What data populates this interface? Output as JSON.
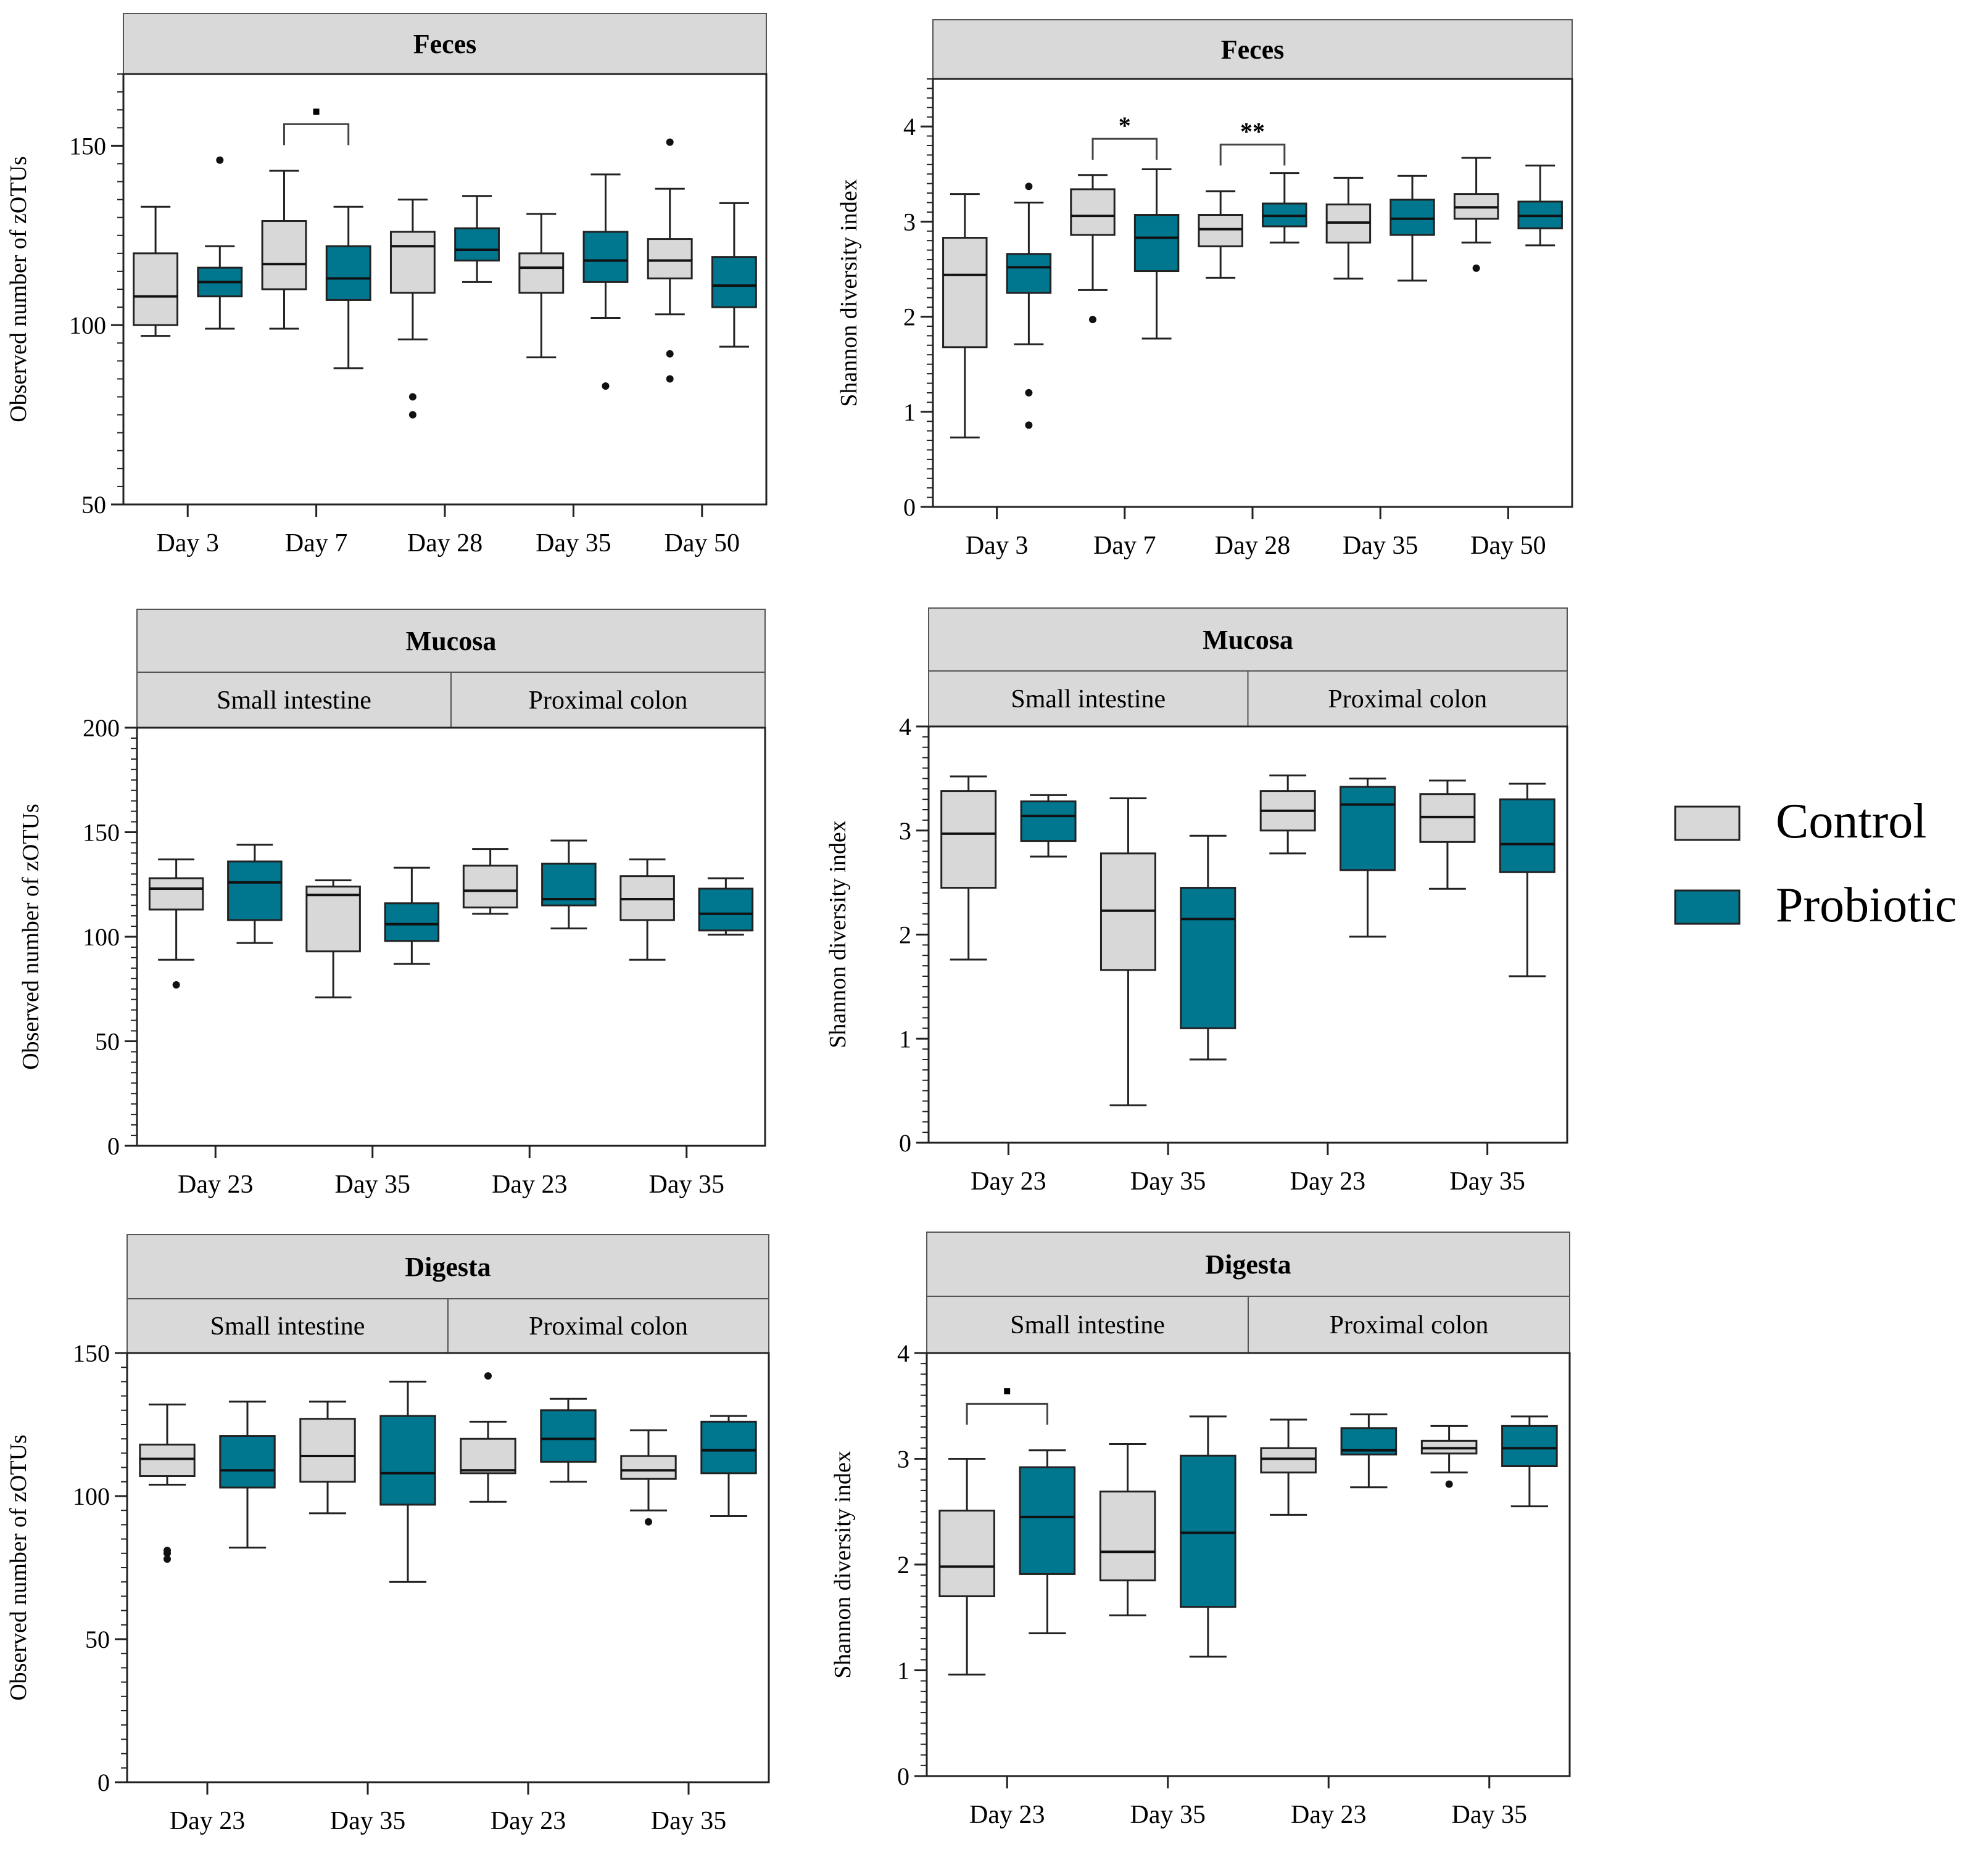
{
  "colors": {
    "control": "#d8d8d8",
    "probiotic": "#00768f",
    "header": "#d9d9d9",
    "ink": "#000000"
  },
  "legend": [
    {
      "key": "control",
      "label": "Control"
    },
    {
      "key": "probiotic",
      "label": "Probiotic"
    }
  ],
  "chart_data": [
    {
      "id": "feces-zotus",
      "type": "box",
      "title": "Feces",
      "subtitles": [],
      "ylabel": "Observed number of zOTUs",
      "ylim": [
        50,
        170
      ],
      "yticks": [
        50,
        100,
        150
      ],
      "categories": [
        "Day 3",
        "Day 7",
        "Day 28",
        "Day 35",
        "Day 50"
      ],
      "series": [
        {
          "name": "Control",
          "boxes": [
            {
              "min": 97,
              "q1": 100,
              "median": 108,
              "q3": 120,
              "max": 133,
              "outliers": []
            },
            {
              "min": 99,
              "q1": 110,
              "median": 117,
              "q3": 129,
              "max": 143,
              "outliers": []
            },
            {
              "min": 96,
              "q1": 109,
              "median": 122,
              "q3": 126,
              "max": 135,
              "outliers": [
                80,
                75
              ]
            },
            {
              "min": 91,
              "q1": 109,
              "median": 116,
              "q3": 120,
              "max": 131,
              "outliers": []
            },
            {
              "min": 103,
              "q1": 113,
              "median": 118,
              "q3": 124,
              "max": 138,
              "outliers": [
                151,
                92,
                85
              ]
            }
          ]
        },
        {
          "name": "Probiotic",
          "boxes": [
            {
              "min": 99,
              "q1": 108,
              "median": 112,
              "q3": 116,
              "max": 122,
              "outliers": [
                146
              ]
            },
            {
              "min": 88,
              "q1": 107,
              "median": 113,
              "q3": 122,
              "max": 133,
              "outliers": []
            },
            {
              "min": 112,
              "q1": 118,
              "median": 121,
              "q3": 127,
              "max": 136,
              "outliers": []
            },
            {
              "min": 102,
              "q1": 112,
              "median": 118,
              "q3": 126,
              "max": 142,
              "outliers": [
                83
              ]
            },
            {
              "min": 94,
              "q1": 105,
              "median": 111,
              "q3": 119,
              "max": 134,
              "outliers": []
            }
          ]
        }
      ],
      "significance": [
        {
          "category": 1,
          "label": "▪",
          "y": 156
        }
      ]
    },
    {
      "id": "feces-shannon",
      "type": "box",
      "title": "Feces",
      "subtitles": [],
      "ylabel": "Shannon diversity index",
      "ylim": [
        0,
        4.5
      ],
      "yticks": [
        0,
        1,
        2,
        3,
        4
      ],
      "categories": [
        "Day 3",
        "Day 7",
        "Day 28",
        "Day 35",
        "Day 50"
      ],
      "series": [
        {
          "name": "Control",
          "boxes": [
            {
              "min": 0.73,
              "q1": 1.68,
              "median": 2.44,
              "q3": 2.83,
              "max": 3.29,
              "outliers": []
            },
            {
              "min": 2.28,
              "q1": 2.86,
              "median": 3.06,
              "q3": 3.34,
              "max": 3.49,
              "outliers": [
                1.97
              ]
            },
            {
              "min": 2.41,
              "q1": 2.74,
              "median": 2.92,
              "q3": 3.07,
              "max": 3.32,
              "outliers": []
            },
            {
              "min": 2.4,
              "q1": 2.78,
              "median": 2.99,
              "q3": 3.18,
              "max": 3.46,
              "outliers": []
            },
            {
              "min": 2.78,
              "q1": 3.03,
              "median": 3.15,
              "q3": 3.29,
              "max": 3.67,
              "outliers": [
                2.51
              ]
            }
          ]
        },
        {
          "name": "Probiotic",
          "boxes": [
            {
              "min": 1.71,
              "q1": 2.25,
              "median": 2.52,
              "q3": 2.66,
              "max": 3.2,
              "outliers": [
                3.37,
                1.2,
                0.86
              ]
            },
            {
              "min": 1.77,
              "q1": 2.48,
              "median": 2.83,
              "q3": 3.07,
              "max": 3.55,
              "outliers": []
            },
            {
              "min": 2.78,
              "q1": 2.95,
              "median": 3.06,
              "q3": 3.19,
              "max": 3.51,
              "outliers": []
            },
            {
              "min": 2.38,
              "q1": 2.86,
              "median": 3.03,
              "q3": 3.23,
              "max": 3.48,
              "outliers": []
            },
            {
              "min": 2.75,
              "q1": 2.93,
              "median": 3.06,
              "q3": 3.21,
              "max": 3.59,
              "outliers": []
            }
          ]
        }
      ],
      "significance": [
        {
          "category": 1,
          "label": "*",
          "y": 3.87
        },
        {
          "category": 2,
          "label": "**",
          "y": 3.81
        }
      ]
    },
    {
      "id": "mucosa-zotus",
      "type": "box",
      "title": "Mucosa",
      "subtitles": [
        "Small intestine",
        "Proximal colon"
      ],
      "ylabel": "Observed number of zOTUs",
      "ylim": [
        0,
        200
      ],
      "yticks": [
        0,
        50,
        100,
        150,
        200
      ],
      "categories": [
        "Day 23",
        "Day 35",
        "Day 23",
        "Day 35"
      ],
      "series": [
        {
          "name": "Control",
          "boxes": [
            {
              "min": 89,
              "q1": 113,
              "median": 123,
              "q3": 128,
              "max": 137,
              "outliers": [
                77
              ]
            },
            {
              "min": 71,
              "q1": 93,
              "median": 120,
              "q3": 124,
              "max": 127,
              "outliers": []
            },
            {
              "min": 111,
              "q1": 114,
              "median": 122,
              "q3": 134,
              "max": 142,
              "outliers": []
            },
            {
              "min": 89,
              "q1": 108,
              "median": 118,
              "q3": 129,
              "max": 137,
              "outliers": []
            }
          ]
        },
        {
          "name": "Probiotic",
          "boxes": [
            {
              "min": 97,
              "q1": 108,
              "median": 126,
              "q3": 136,
              "max": 144,
              "outliers": []
            },
            {
              "min": 87,
              "q1": 98,
              "median": 106,
              "q3": 116,
              "max": 133,
              "outliers": []
            },
            {
              "min": 104,
              "q1": 115,
              "median": 118,
              "q3": 135,
              "max": 146,
              "outliers": []
            },
            {
              "min": 101,
              "q1": 103,
              "median": 111,
              "q3": 123,
              "max": 128,
              "outliers": []
            }
          ]
        }
      ],
      "significance": []
    },
    {
      "id": "mucosa-shannon",
      "type": "box",
      "title": "Mucosa",
      "subtitles": [
        "Small intestine",
        "Proximal colon"
      ],
      "ylabel": "Shannon diversity index",
      "ylim": [
        0,
        4
      ],
      "yticks": [
        0,
        1,
        2,
        3,
        4
      ],
      "categories": [
        "Day 23",
        "Day 35",
        "Day 23",
        "Day 35"
      ],
      "series": [
        {
          "name": "Control",
          "boxes": [
            {
              "min": 1.76,
              "q1": 2.45,
              "median": 2.97,
              "q3": 3.38,
              "max": 3.52,
              "outliers": []
            },
            {
              "min": 0.36,
              "q1": 1.66,
              "median": 2.23,
              "q3": 2.78,
              "max": 3.31,
              "outliers": []
            },
            {
              "min": 2.78,
              "q1": 3.0,
              "median": 3.19,
              "q3": 3.38,
              "max": 3.53,
              "outliers": []
            },
            {
              "min": 2.44,
              "q1": 2.89,
              "median": 3.13,
              "q3": 3.35,
              "max": 3.48,
              "outliers": []
            }
          ]
        },
        {
          "name": "Probiotic",
          "boxes": [
            {
              "min": 2.75,
              "q1": 2.9,
              "median": 3.14,
              "q3": 3.28,
              "max": 3.34,
              "outliers": []
            },
            {
              "min": 0.8,
              "q1": 1.1,
              "median": 2.15,
              "q3": 2.45,
              "max": 2.95,
              "outliers": []
            },
            {
              "min": 1.98,
              "q1": 2.62,
              "median": 3.25,
              "q3": 3.42,
              "max": 3.5,
              "outliers": []
            },
            {
              "min": 1.6,
              "q1": 2.6,
              "median": 2.87,
              "q3": 3.3,
              "max": 3.45,
              "outliers": []
            }
          ]
        }
      ],
      "significance": []
    },
    {
      "id": "digesta-zotus",
      "type": "box",
      "title": "Digesta",
      "subtitles": [
        "Small intestine",
        "Proximal colon"
      ],
      "ylabel": "Observed number of zOTUs",
      "ylim": [
        0,
        150
      ],
      "yticks": [
        0,
        50,
        100,
        150
      ],
      "categories": [
        "Day 23",
        "Day 35",
        "Day 23",
        "Day 35"
      ],
      "series": [
        {
          "name": "Control",
          "boxes": [
            {
              "min": 104,
              "q1": 107,
              "median": 113,
              "q3": 118,
              "max": 132,
              "outliers": [
                81,
                80,
                78
              ]
            },
            {
              "min": 94,
              "q1": 105,
              "median": 114,
              "q3": 127,
              "max": 133,
              "outliers": []
            },
            {
              "min": 98,
              "q1": 108,
              "median": 109,
              "q3": 120,
              "max": 126,
              "outliers": [
                142
              ]
            },
            {
              "min": 95,
              "q1": 106,
              "median": 109,
              "q3": 114,
              "max": 123,
              "outliers": [
                91
              ]
            }
          ]
        },
        {
          "name": "Probiotic",
          "boxes": [
            {
              "min": 82,
              "q1": 103,
              "median": 109,
              "q3": 121,
              "max": 133,
              "outliers": []
            },
            {
              "min": 70,
              "q1": 97,
              "median": 108,
              "q3": 128,
              "max": 140,
              "outliers": []
            },
            {
              "min": 105,
              "q1": 112,
              "median": 120,
              "q3": 130,
              "max": 134,
              "outliers": []
            },
            {
              "min": 93,
              "q1": 108,
              "median": 116,
              "q3": 126,
              "max": 128,
              "outliers": []
            }
          ]
        }
      ],
      "significance": []
    },
    {
      "id": "digesta-shannon",
      "type": "box",
      "title": "Digesta",
      "subtitles": [
        "Small intestine",
        "Proximal colon"
      ],
      "ylabel": "Shannon diversity index",
      "ylim": [
        0,
        4
      ],
      "yticks": [
        0,
        1,
        2,
        3,
        4
      ],
      "categories": [
        "Day 23",
        "Day 35",
        "Day 23",
        "Day 35"
      ],
      "series": [
        {
          "name": "Control",
          "boxes": [
            {
              "min": 0.96,
              "q1": 1.7,
              "median": 1.98,
              "q3": 2.51,
              "max": 3.0,
              "outliers": []
            },
            {
              "min": 1.52,
              "q1": 1.85,
              "median": 2.12,
              "q3": 2.69,
              "max": 3.14,
              "outliers": []
            },
            {
              "min": 2.47,
              "q1": 2.87,
              "median": 3.0,
              "q3": 3.1,
              "max": 3.37,
              "outliers": []
            },
            {
              "min": 2.87,
              "q1": 3.05,
              "median": 3.1,
              "q3": 3.17,
              "max": 3.31,
              "outliers": [
                2.76
              ]
            }
          ]
        },
        {
          "name": "Probiotic",
          "boxes": [
            {
              "min": 1.35,
              "q1": 1.91,
              "median": 2.45,
              "q3": 2.92,
              "max": 3.08,
              "outliers": []
            },
            {
              "min": 1.13,
              "q1": 1.6,
              "median": 2.3,
              "q3": 3.03,
              "max": 3.4,
              "outliers": []
            },
            {
              "min": 2.73,
              "q1": 3.04,
              "median": 3.08,
              "q3": 3.29,
              "max": 3.42,
              "outliers": []
            },
            {
              "min": 2.55,
              "q1": 2.93,
              "median": 3.1,
              "q3": 3.31,
              "max": 3.4,
              "outliers": []
            }
          ]
        }
      ],
      "significance": [
        {
          "category": 0,
          "label": "▪",
          "y": 3.52
        }
      ]
    }
  ]
}
